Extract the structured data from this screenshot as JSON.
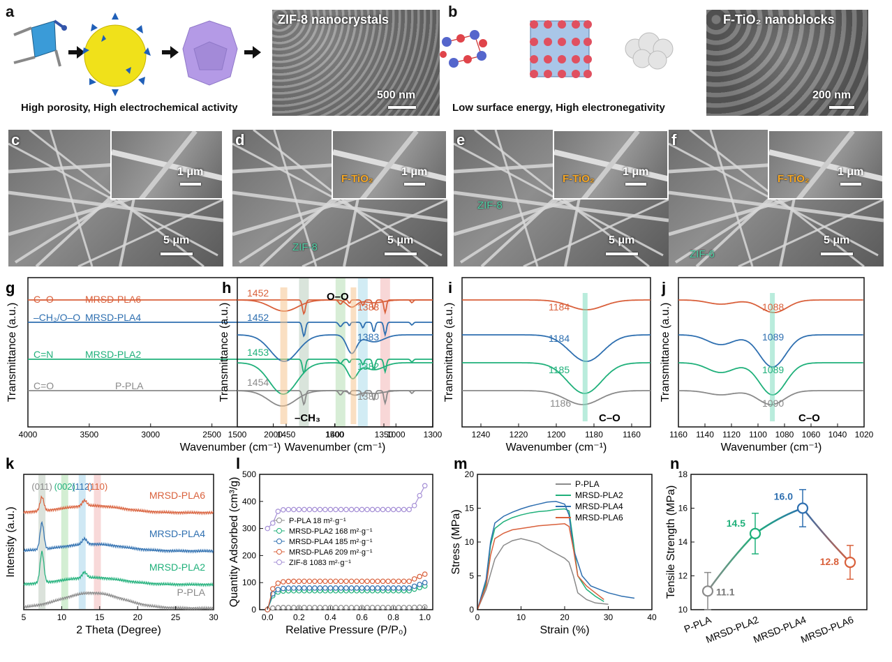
{
  "panel_a": {
    "label": "a",
    "sem_title": "ZIF-8 nanocrystals",
    "scale": "500 nm",
    "caption": "High porosity, High electrochemical activity"
  },
  "panel_b": {
    "label": "b",
    "sem_title": "F-TiO₂ nanoblocks",
    "scale": "200 nm",
    "caption": "Low surface energy, High electronegativity"
  },
  "sem_row": [
    {
      "label": "c",
      "main_scale": "5 μm",
      "inset_scale": "1 μm",
      "ftio": "",
      "zif": ""
    },
    {
      "label": "d",
      "main_scale": "5 μm",
      "inset_scale": "1 μm",
      "ftio": "F-TiO₂",
      "zif": "ZIF-8"
    },
    {
      "label": "e",
      "main_scale": "5 μm",
      "inset_scale": "1 μm",
      "ftio": "F-TiO₂",
      "zif": "ZIF-8"
    },
    {
      "label": "f",
      "main_scale": "5 μm",
      "inset_scale": "1 μm",
      "ftio": "F-TiO₂",
      "zif": "ZIF-6"
    }
  ],
  "colors": {
    "pla": "#8a8a8a",
    "mrsd2": "#1fb07a",
    "mrsd4": "#2e6fb0",
    "mrsd6": "#d9603b",
    "zif8": "#a58fd6"
  },
  "chart_data": [
    {
      "panel": "g",
      "type": "line",
      "xlabel": "Wavenumber (cm⁻¹)",
      "ylabel": "Transmittance (a.u.)",
      "xlim": [
        4000,
        700
      ],
      "xticks": [
        "4000",
        "3500",
        "3000",
        "2500",
        "2000",
        "1500",
        "1000"
      ],
      "series": [
        {
          "name": "MRSD-PLA6",
          "tag": "C–O"
        },
        {
          "name": "MRSD-PLA4",
          "tag": "–CH₃/O–O"
        },
        {
          "name": "MRSD-PLA2",
          "tag": "C=N"
        },
        {
          "name": "P-PLA",
          "tag": "C=O"
        }
      ],
      "bands": [
        1750,
        1452,
        1270,
        1088
      ]
    },
    {
      "panel": "h",
      "type": "line",
      "xlabel": "Wavenumber (cm⁻¹)",
      "ylabel": "Transmittance (a.u.)",
      "xlim": [
        1500,
        1300
      ],
      "xticks": [
        "1500",
        "1450",
        "1400",
        "1350",
        "1300"
      ],
      "peak_labels_left": [
        "1452",
        "1452",
        "1453",
        "1454"
      ],
      "peak_labels_right": [
        "1383",
        "1383",
        "1382",
        "1380"
      ],
      "annotations": {
        "top": "O–O",
        "bottom": "–CH₃"
      }
    },
    {
      "panel": "i",
      "type": "line",
      "xlabel": "Wavenumber (cm⁻¹)",
      "ylabel": "Transmittance (a.u.)",
      "xlim": [
        1250,
        1150
      ],
      "xticks": [
        "1240",
        "1220",
        "1200",
        "1180",
        "1160"
      ],
      "peak_labels": [
        "1184",
        "1184",
        "1185",
        "1186"
      ],
      "annotation": "C–O"
    },
    {
      "panel": "j",
      "type": "line",
      "xlabel": "Wavenumber (cm⁻¹)",
      "ylabel": "Transmittance (a.u.)",
      "xlim": [
        1160,
        1020
      ],
      "xticks": [
        "1160",
        "1140",
        "1120",
        "1100",
        "1080",
        "1060",
        "1040",
        "1020"
      ],
      "peak_labels": [
        "1088",
        "1089",
        "1089",
        "1090"
      ],
      "annotation": "C–O"
    },
    {
      "panel": "k",
      "type": "line",
      "xlabel": "2 Theta (Degree)",
      "ylabel": "Intensity (a.u.)",
      "xlim": [
        5,
        30
      ],
      "xticks": [
        "5",
        "10",
        "15",
        "20",
        "25",
        "30"
      ],
      "series": [
        "MRSD-PLA6",
        "MRSD-PLA4",
        "MRSD-PLA2",
        "P-PLA"
      ],
      "peaks": [
        {
          "label": "(011)",
          "x": 7.4
        },
        {
          "label": "(002)",
          "x": 10.4
        },
        {
          "label": "(112)",
          "x": 12.7
        },
        {
          "label": "(110)",
          "x": 14.7
        }
      ]
    },
    {
      "panel": "l",
      "type": "scatter",
      "xlabel": "Relative Pressure (P/P₀)",
      "ylabel": "Quantity Adsorbed (cm³/g)",
      "xlim": [
        -0.05,
        1.05
      ],
      "ylim": [
        0,
        500
      ],
      "xticks": [
        "0.0",
        "0.2",
        "0.4",
        "0.6",
        "0.8",
        "1.0"
      ],
      "yticks": [
        "0",
        "100",
        "200",
        "300",
        "400",
        "500"
      ],
      "legend": [
        {
          "name": "P-PLA 18 m²·g⁻¹",
          "plateau": 8
        },
        {
          "name": "MRSD-PLA2 168 m²·g⁻¹",
          "plateau": 70
        },
        {
          "name": "MRSD-PLA4 185 m²·g⁻¹",
          "plateau": 80
        },
        {
          "name": "MRSD-PLA6 209 m²·g⁻¹",
          "plateau": 105
        },
        {
          "name": "ZIF-8 1083 m²·g⁻¹",
          "plateau": 370
        }
      ]
    },
    {
      "panel": "m",
      "type": "line",
      "xlabel": "Strain (%)",
      "ylabel": "Stress (MPa)",
      "xlim": [
        0,
        40
      ],
      "ylim": [
        0,
        20
      ],
      "xticks": [
        "0",
        "10",
        "20",
        "30",
        "40"
      ],
      "yticks": [
        "0",
        "5",
        "10",
        "15",
        "20"
      ],
      "series": [
        {
          "name": "P-PLA",
          "x": [
            0,
            2,
            4,
            6,
            8,
            10,
            12,
            14,
            16,
            18,
            20,
            21,
            22,
            23,
            25,
            27,
            30
          ],
          "y": [
            0,
            3,
            7.5,
            9.5,
            10.2,
            10.5,
            10.2,
            9.8,
            9.0,
            8.3,
            7.6,
            7.0,
            5.0,
            2.5,
            1.5,
            1.0,
            0.8
          ]
        },
        {
          "name": "MRSD-PLA2",
          "x": [
            0,
            2,
            3,
            4,
            6,
            8,
            10,
            12,
            14,
            16,
            18,
            20,
            21,
            22,
            23,
            25,
            27,
            29
          ],
          "y": [
            0,
            4,
            9.5,
            12.0,
            13.0,
            13.6,
            14.0,
            14.3,
            14.5,
            14.6,
            14.8,
            14.9,
            14.6,
            10,
            5,
            3,
            2,
            1.2
          ]
        },
        {
          "name": "MRSD-PLA4",
          "x": [
            0,
            2,
            3,
            4,
            6,
            8,
            10,
            12,
            14,
            16,
            18,
            20,
            21,
            22,
            24,
            26,
            28,
            30,
            33,
            36
          ],
          "y": [
            0,
            4.5,
            10,
            12.8,
            13.8,
            14.4,
            14.9,
            15.3,
            15.6,
            15.9,
            16.0,
            15.6,
            14,
            9,
            5,
            3.5,
            3,
            2.5,
            2,
            1.7
          ]
        },
        {
          "name": "MRSD-PLA6",
          "x": [
            0,
            2,
            3,
            4,
            6,
            8,
            10,
            12,
            14,
            16,
            18,
            20,
            21,
            22,
            23,
            25,
            27,
            29
          ],
          "y": [
            0,
            3.5,
            8,
            10.5,
            11.3,
            11.8,
            12.0,
            12.2,
            12.4,
            12.5,
            12.6,
            12.7,
            12.3,
            9,
            5,
            3.5,
            2.5,
            1.5
          ]
        }
      ]
    },
    {
      "panel": "n",
      "type": "line",
      "xlabel": "",
      "ylabel": "Tensile Strength (MPa)",
      "ylim": [
        10,
        18
      ],
      "yticks": [
        "10",
        "12",
        "14",
        "16",
        "18"
      ],
      "categories": [
        "P-PLA",
        "MRSD-PLA2",
        "MRSD-PLA4",
        "MRSD-PLA6"
      ],
      "values": [
        11.1,
        14.5,
        16.0,
        12.8
      ],
      "errors": [
        1.1,
        1.2,
        1.1,
        1.0
      ],
      "value_labels": [
        "11.1",
        "14.5",
        "16.0",
        "12.8"
      ]
    }
  ]
}
